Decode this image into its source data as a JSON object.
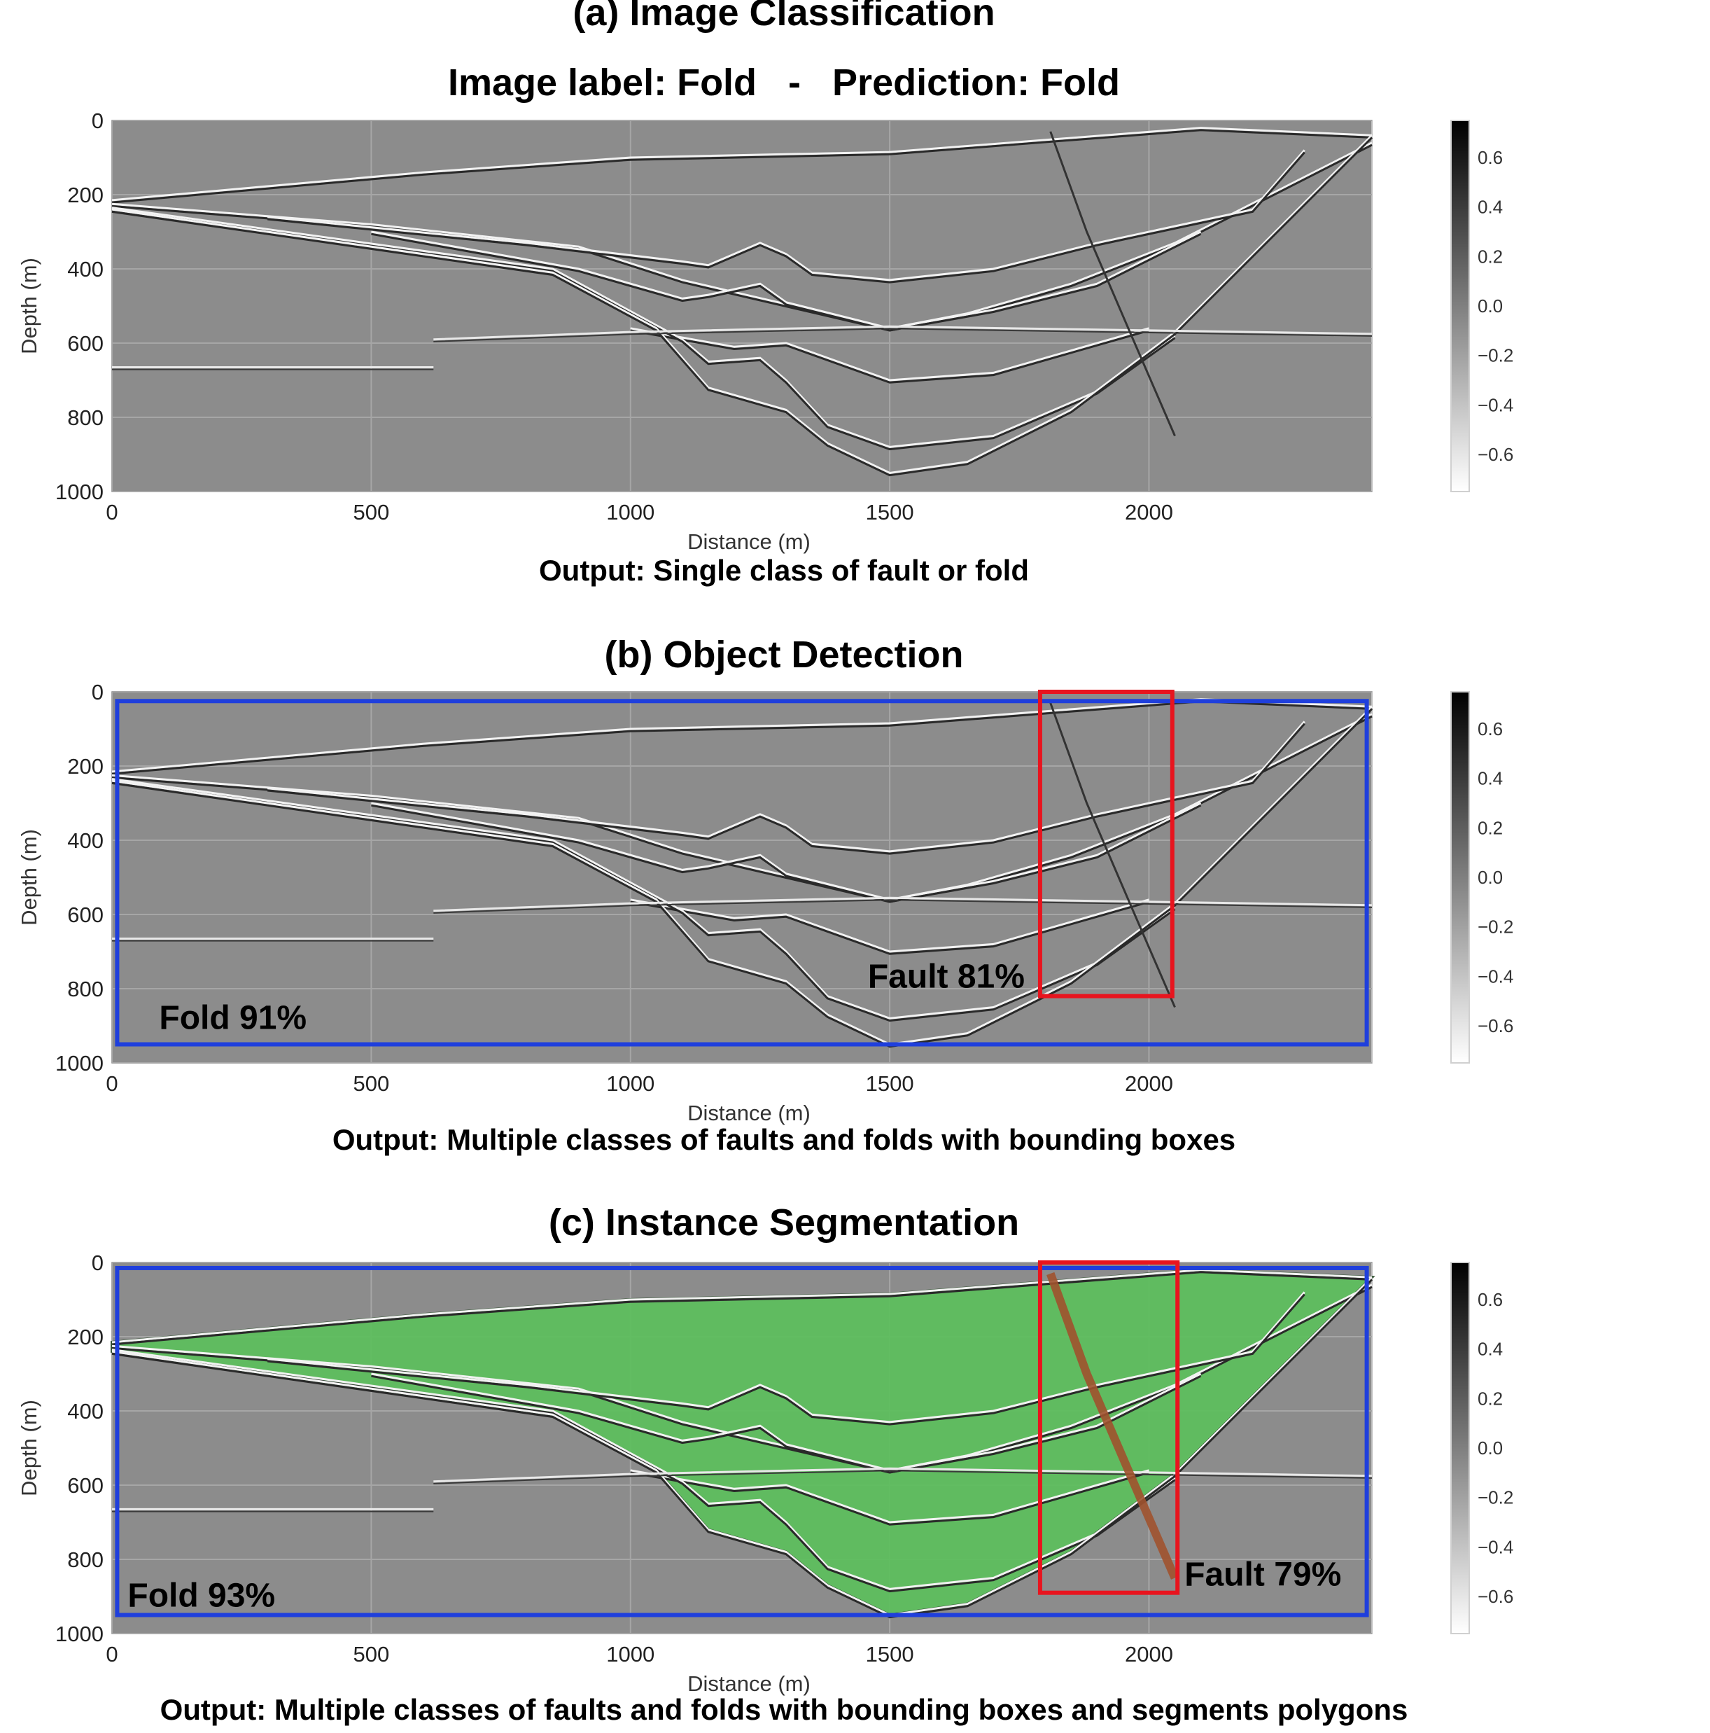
{
  "panels": [
    {
      "id": "a",
      "title": "(a) Image Classification",
      "subtitle": "Image label: Fold   -   Prediction: Fold",
      "output": "Output: Single class of fault or fold",
      "detections": []
    },
    {
      "id": "b",
      "title": "(b) Object Detection",
      "output": "Output: Multiple classes of faults and folds with bounding boxes",
      "detections": [
        {
          "label": "Fold 91%",
          "color": "#1f3fdc",
          "x0": 10,
          "x1": 2420,
          "y0": 25,
          "y1": 950
        },
        {
          "label": "Fault 81%",
          "color": "#e8141e",
          "x0": 1790,
          "x1": 2045,
          "y0": 0,
          "y1": 820
        }
      ]
    },
    {
      "id": "c",
      "title": "(c) Instance Segmentation",
      "output": "Output: Multiple classes of faults and folds with bounding boxes and segments polygons",
      "detections": [
        {
          "label": "Fold 93%",
          "color": "#1f3fdc",
          "x0": 10,
          "x1": 2420,
          "y0": 15,
          "y1": 950
        },
        {
          "label": "Fault 79%",
          "color": "#e8141e",
          "x0": 1790,
          "x1": 2055,
          "y0": 0,
          "y1": 890
        }
      ]
    }
  ],
  "chart_data": {
    "type": "heatmap",
    "xlabel": "Distance (m)",
    "ylabel": "Depth (m)",
    "xlim": [
      0,
      2430
    ],
    "ylim": [
      1000,
      0
    ],
    "xticks": [
      "0",
      "500",
      "1000",
      "1500",
      "2000"
    ],
    "yticks": [
      "0",
      "200",
      "400",
      "600",
      "800",
      "1000"
    ],
    "colorbar": {
      "range": [
        -0.75,
        0.75
      ],
      "ticks": [
        "0.6",
        "0.4",
        "0.2",
        "0.0",
        "−0.2",
        "−0.4",
        "−0.6"
      ],
      "colormap": "gray_r"
    },
    "horizons": [
      [
        [
          0,
          215
        ],
        [
          600,
          140
        ],
        [
          1000,
          100
        ],
        [
          1500,
          85
        ],
        [
          2100,
          20
        ],
        [
          2430,
          40
        ]
      ],
      [
        [
          0,
          225
        ],
        [
          500,
          280
        ],
        [
          900,
          340
        ],
        [
          1100,
          430
        ],
        [
          1500,
          560
        ],
        [
          1650,
          520
        ],
        [
          1850,
          440
        ],
        [
          2050,
          330
        ],
        [
          2430,
          60
        ]
      ],
      [
        [
          300,
          260
        ],
        [
          800,
          330
        ],
        [
          1100,
          380
        ],
        [
          1150,
          390
        ],
        [
          1250,
          330
        ],
        [
          1300,
          360
        ],
        [
          1350,
          410
        ],
        [
          1500,
          430
        ],
        [
          1700,
          400
        ],
        [
          1900,
          330
        ],
        [
          2200,
          240
        ],
        [
          2300,
          80
        ]
      ],
      [
        [
          500,
          300
        ],
        [
          900,
          400
        ],
        [
          1100,
          480
        ],
        [
          1150,
          470
        ],
        [
          1250,
          440
        ],
        [
          1300,
          490
        ],
        [
          1500,
          560
        ],
        [
          1700,
          510
        ],
        [
          1900,
          440
        ],
        [
          2100,
          300
        ]
      ],
      [
        [
          1000,
          560
        ],
        [
          1200,
          610
        ],
        [
          1300,
          600
        ],
        [
          1500,
          700
        ],
        [
          1700,
          680
        ],
        [
          1900,
          600
        ],
        [
          2000,
          560
        ]
      ],
      [
        [
          0,
          235
        ],
        [
          850,
          400
        ],
        [
          1100,
          590
        ],
        [
          1150,
          650
        ],
        [
          1250,
          640
        ],
        [
          1300,
          700
        ],
        [
          1380,
          820
        ],
        [
          1500,
          880
        ],
        [
          1700,
          850
        ],
        [
          1900,
          730
        ],
        [
          2050,
          580
        ]
      ],
      [
        [
          0,
          240
        ],
        [
          850,
          410
        ],
        [
          1050,
          560
        ],
        [
          1150,
          720
        ],
        [
          1300,
          780
        ],
        [
          1380,
          870
        ],
        [
          1500,
          950
        ],
        [
          1650,
          920
        ],
        [
          1850,
          780
        ],
        [
          2050,
          570
        ],
        [
          2430,
          40
        ]
      ]
    ],
    "flat_reflectors": [
      [
        [
          0,
          665
        ],
        [
          620,
          665
        ]
      ],
      [
        [
          620,
          590
        ],
        [
          1000,
          570
        ],
        [
          1500,
          555
        ],
        [
          2430,
          575
        ]
      ]
    ],
    "fault_trace": [
      [
        1810,
        30
      ],
      [
        1880,
        300
      ],
      [
        1960,
        560
      ],
      [
        2050,
        850
      ]
    ]
  }
}
